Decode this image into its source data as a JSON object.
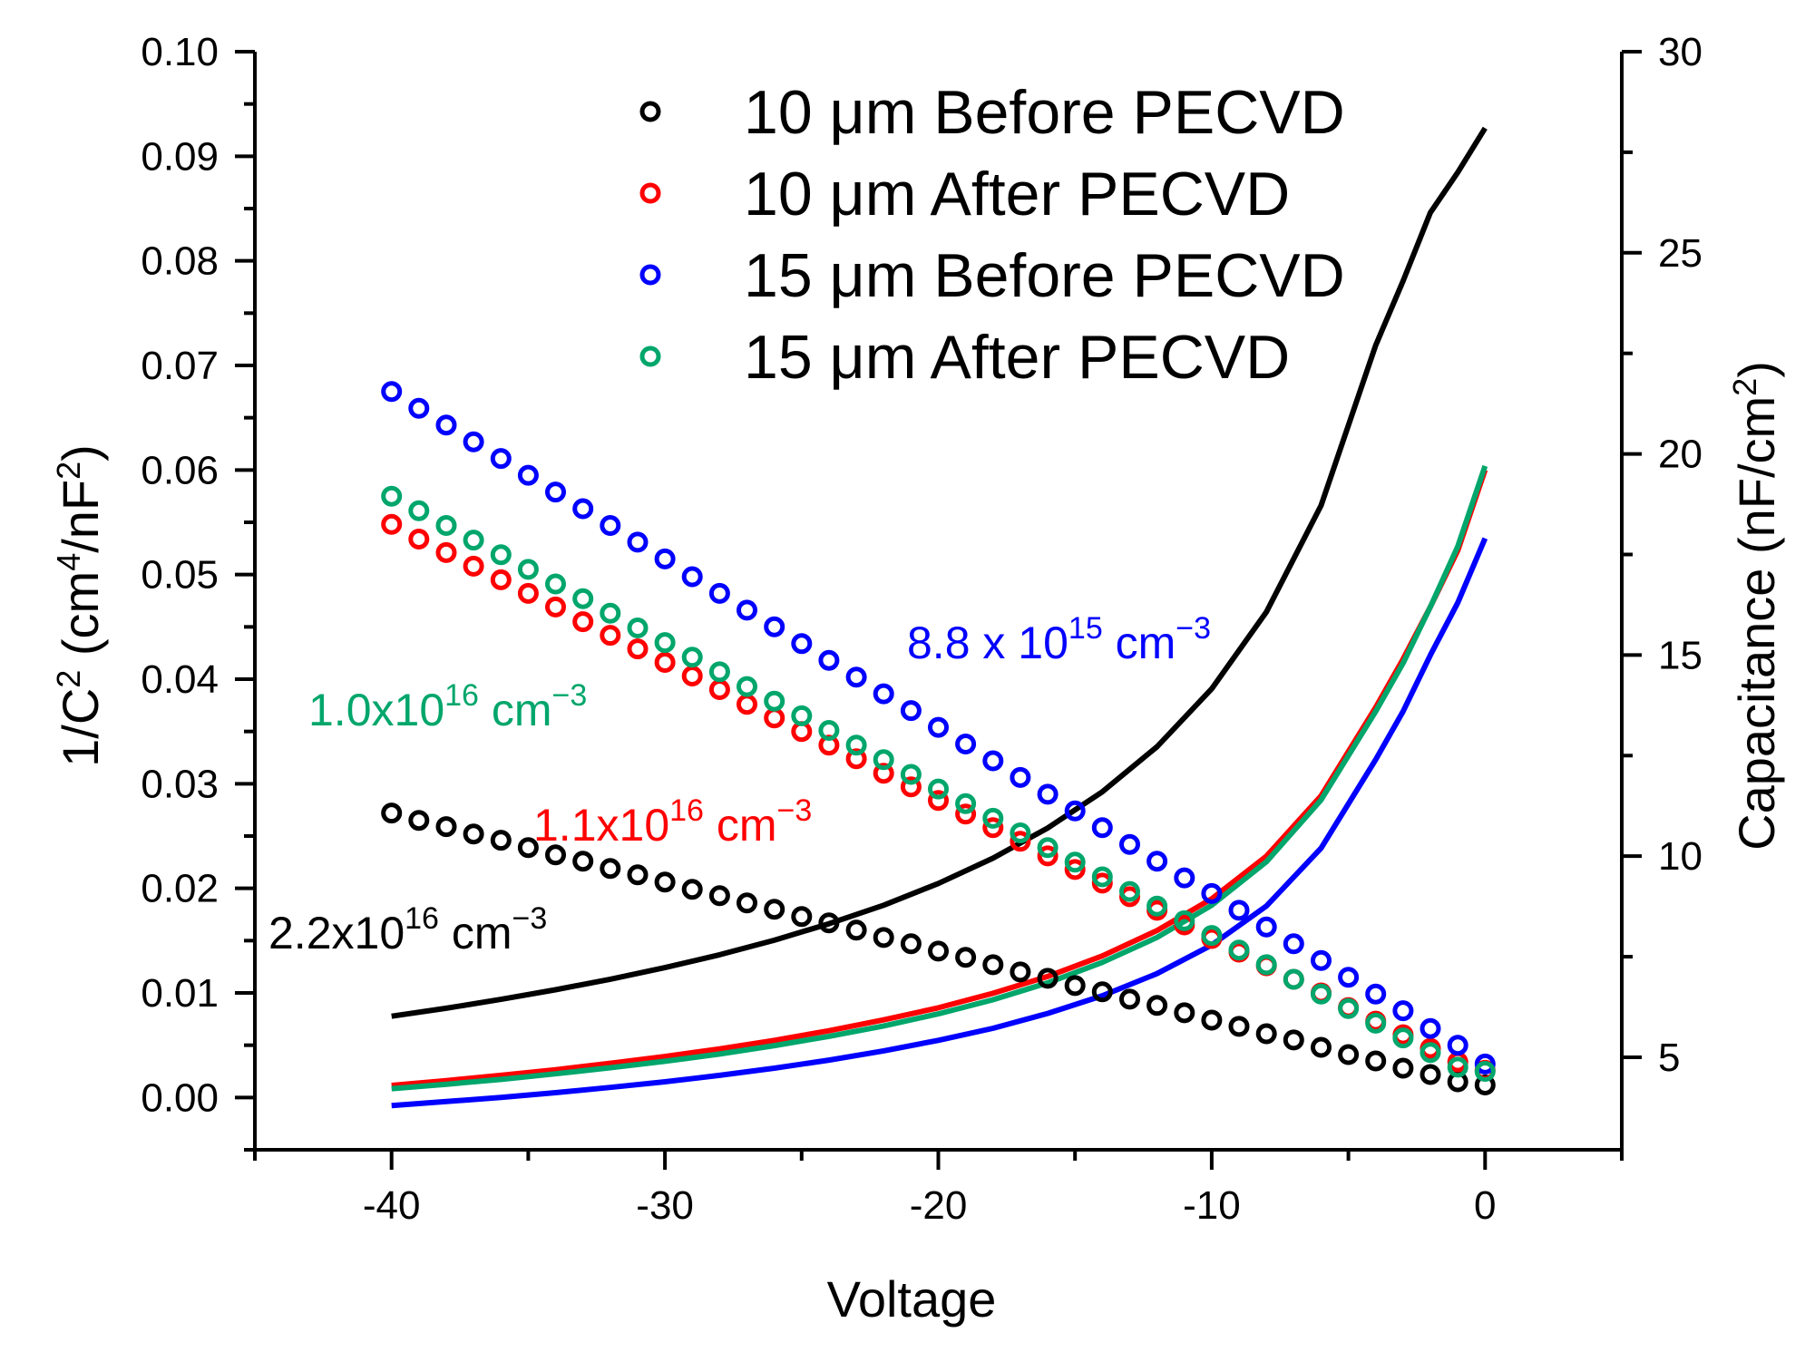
{
  "chart_data": {
    "type": "scatter",
    "x_axis": {
      "label": "Voltage",
      "range": [
        -45,
        5
      ],
      "ticks": [
        -40,
        -30,
        -20,
        -10,
        0
      ],
      "tick_labels": [
        "-40",
        "-30",
        "-20",
        "-10",
        "0"
      ]
    },
    "y_axis_left": {
      "label_main": "1/C",
      "label_sup1": "2",
      "label_mid": " (cm",
      "label_sup2": "4",
      "label_mid2": "/nF",
      "label_sup3": "2",
      "label_end": ")",
      "range": [
        -0.005,
        0.1
      ],
      "ticks": [
        0.0,
        0.01,
        0.02,
        0.03,
        0.04,
        0.05,
        0.06,
        0.07,
        0.08,
        0.09,
        0.1
      ],
      "tick_labels": [
        "0.00",
        "0.01",
        "0.02",
        "0.03",
        "0.04",
        "0.05",
        "0.06",
        "0.07",
        "0.08",
        "0.09",
        "0.10"
      ]
    },
    "y_axis_right": {
      "label_main": "Capacitance (nF/cm",
      "label_sup": "2",
      "label_end": ")",
      "range": [
        2.7,
        30
      ],
      "ticks": [
        5,
        10,
        15,
        20,
        25,
        30
      ],
      "tick_labels": [
        "5",
        "10",
        "15",
        "20",
        "25",
        "30"
      ]
    },
    "legend": {
      "placement": "top",
      "entries": [
        {
          "label": "10 μm Before PECVD",
          "color": "#000000"
        },
        {
          "label": "10 μm After PECVD",
          "color": "#ff0000"
        },
        {
          "label": "15 μm Before PECVD",
          "color": "#0000ff"
        },
        {
          "label": "15 μm After PECVD",
          "color": "#00a66b"
        }
      ]
    },
    "scatter_series": [
      {
        "name": "10 μm Before PECVD",
        "color": "#000000",
        "axis": "left",
        "x": [
          -40,
          -39,
          -38,
          -37,
          -36,
          -35,
          -34,
          -33,
          -32,
          -31,
          -30,
          -29,
          -28,
          -27,
          -26,
          -25,
          -24,
          -23,
          -22,
          -21,
          -20,
          -19,
          -18,
          -17,
          -16,
          -15,
          -14,
          -13,
          -12,
          -11,
          -10,
          -9,
          -8,
          -7,
          -6,
          -5,
          -4,
          -3,
          -2,
          -1,
          0
        ],
        "y": [
          0.0272,
          0.0265,
          0.0259,
          0.0252,
          0.0246,
          0.0239,
          0.0232,
          0.0226,
          0.0219,
          0.0213,
          0.0206,
          0.0199,
          0.0193,
          0.0186,
          0.018,
          0.0173,
          0.0167,
          0.016,
          0.0153,
          0.0147,
          0.014,
          0.0134,
          0.0127,
          0.012,
          0.0114,
          0.0107,
          0.0101,
          0.0094,
          0.0088,
          0.0081,
          0.0074,
          0.0068,
          0.0061,
          0.0055,
          0.0048,
          0.0041,
          0.0035,
          0.0028,
          0.0022,
          0.0015,
          0.0012
        ]
      },
      {
        "name": "10 μm After PECVD",
        "color": "#ff0000",
        "axis": "left",
        "x": [
          -40,
          -39,
          -38,
          -37,
          -36,
          -35,
          -34,
          -33,
          -32,
          -31,
          -30,
          -29,
          -28,
          -27,
          -26,
          -25,
          -24,
          -23,
          -22,
          -21,
          -20,
          -19,
          -18,
          -17,
          -16,
          -15,
          -14,
          -13,
          -12,
          -11,
          -10,
          -9,
          -8,
          -7,
          -6,
          -5,
          -4,
          -3,
          -2,
          -1,
          0
        ],
        "y": [
          0.0548,
          0.0534,
          0.0521,
          0.0508,
          0.0495,
          0.0482,
          0.0469,
          0.0455,
          0.0442,
          0.0429,
          0.0416,
          0.0403,
          0.039,
          0.0376,
          0.0363,
          0.035,
          0.0337,
          0.0324,
          0.031,
          0.0297,
          0.0284,
          0.0271,
          0.0258,
          0.0245,
          0.0231,
          0.0218,
          0.0205,
          0.0192,
          0.0179,
          0.0165,
          0.0152,
          0.0139,
          0.0126,
          0.0113,
          0.01,
          0.0086,
          0.0073,
          0.006,
          0.0047,
          0.0034,
          0.0026
        ]
      },
      {
        "name": "15 μm Before PECVD",
        "color": "#0000ff",
        "axis": "left",
        "x": [
          -40,
          -39,
          -38,
          -37,
          -36,
          -35,
          -34,
          -33,
          -32,
          -31,
          -30,
          -29,
          -28,
          -27,
          -26,
          -25,
          -24,
          -23,
          -22,
          -21,
          -20,
          -19,
          -18,
          -17,
          -16,
          -15,
          -14,
          -13,
          -12,
          -11,
          -10,
          -9,
          -8,
          -7,
          -6,
          -5,
          -4,
          -3,
          -2,
          -1,
          0
        ],
        "y": [
          0.0675,
          0.0659,
          0.0643,
          0.0627,
          0.0611,
          0.0595,
          0.0579,
          0.0563,
          0.0547,
          0.0531,
          0.0515,
          0.0498,
          0.0482,
          0.0466,
          0.045,
          0.0434,
          0.0418,
          0.0402,
          0.0386,
          0.037,
          0.0354,
          0.0338,
          0.0322,
          0.0306,
          0.029,
          0.0274,
          0.0258,
          0.0242,
          0.0226,
          0.021,
          0.0195,
          0.0179,
          0.0163,
          0.0147,
          0.0131,
          0.0115,
          0.0099,
          0.0083,
          0.0066,
          0.005,
          0.0032
        ]
      },
      {
        "name": "15 μm After PECVD",
        "color": "#00a66b",
        "axis": "left",
        "x": [
          -40,
          -39,
          -38,
          -37,
          -36,
          -35,
          -34,
          -33,
          -32,
          -31,
          -30,
          -29,
          -28,
          -27,
          -26,
          -25,
          -24,
          -23,
          -22,
          -21,
          -20,
          -19,
          -18,
          -17,
          -16,
          -15,
          -14,
          -13,
          -12,
          -11,
          -10,
          -9,
          -8,
          -7,
          -6,
          -5,
          -4,
          -3,
          -2,
          -1,
          0
        ],
        "y": [
          0.0575,
          0.0561,
          0.0547,
          0.0533,
          0.0519,
          0.0505,
          0.0491,
          0.0477,
          0.0463,
          0.0449,
          0.0435,
          0.0421,
          0.0407,
          0.0393,
          0.0379,
          0.0365,
          0.0351,
          0.0337,
          0.0323,
          0.0309,
          0.0295,
          0.0281,
          0.0267,
          0.0253,
          0.0239,
          0.0225,
          0.0211,
          0.0197,
          0.0183,
          0.0169,
          0.0155,
          0.0141,
          0.0127,
          0.0113,
          0.0099,
          0.0085,
          0.0071,
          0.0057,
          0.0043,
          0.0029,
          0.0025
        ]
      }
    ],
    "line_series": [
      {
        "name": "10 μm Before PECVD (C-V)",
        "color": "#000000",
        "axis": "right",
        "x": [
          -40,
          -38,
          -36,
          -34,
          -32,
          -30,
          -28,
          -26,
          -24,
          -22,
          -20,
          -18,
          -16,
          -14,
          -12,
          -10,
          -8,
          -6,
          -4,
          -3,
          -2,
          -1,
          0
        ],
        "y": [
          6.02,
          6.22,
          6.44,
          6.68,
          6.94,
          7.23,
          7.55,
          7.91,
          8.32,
          8.78,
          9.32,
          9.95,
          10.7,
          11.6,
          12.72,
          14.16,
          16.07,
          18.72,
          22.7,
          24.3,
          26.0,
          27.0,
          28.1
        ]
      },
      {
        "name": "10 μm After PECVD (C-V)",
        "color": "#ff0000",
        "axis": "right",
        "x": [
          -40,
          -38,
          -36,
          -34,
          -32,
          -30,
          -28,
          -26,
          -24,
          -22,
          -20,
          -18,
          -16,
          -14,
          -12,
          -10,
          -8,
          -6,
          -4,
          -3,
          -2,
          -1,
          0
        ],
        "y": [
          4.3,
          4.42,
          4.55,
          4.69,
          4.85,
          5.02,
          5.21,
          5.42,
          5.66,
          5.93,
          6.23,
          6.59,
          7.01,
          7.52,
          8.15,
          8.94,
          10.0,
          11.5,
          13.7,
          14.9,
          16.2,
          17.6,
          19.6
        ]
      },
      {
        "name": "15 μm Before PECVD (C-V)",
        "color": "#0000ff",
        "axis": "right",
        "x": [
          -40,
          -38,
          -36,
          -34,
          -32,
          -30,
          -28,
          -26,
          -24,
          -22,
          -20,
          -18,
          -16,
          -14,
          -12,
          -10,
          -8,
          -6,
          -4,
          -3,
          -2,
          -1,
          0
        ],
        "y": [
          3.8,
          3.9,
          4.0,
          4.12,
          4.25,
          4.39,
          4.55,
          4.73,
          4.93,
          5.16,
          5.42,
          5.72,
          6.09,
          6.53,
          7.08,
          7.79,
          8.76,
          10.2,
          12.4,
          13.6,
          15.0,
          16.3,
          17.9
        ]
      },
      {
        "name": "15 μm After PECVD (C-V)",
        "color": "#00a66b",
        "axis": "right",
        "x": [
          -40,
          -38,
          -36,
          -34,
          -32,
          -30,
          -28,
          -26,
          -24,
          -22,
          -20,
          -18,
          -16,
          -14,
          -12,
          -10,
          -8,
          -6,
          -4,
          -3,
          -2,
          -1,
          0
        ],
        "y": [
          4.22,
          4.33,
          4.45,
          4.59,
          4.74,
          4.9,
          5.08,
          5.29,
          5.52,
          5.78,
          6.08,
          6.43,
          6.85,
          7.36,
          7.98,
          8.78,
          9.86,
          11.4,
          13.6,
          14.8,
          16.2,
          17.7,
          19.7
        ]
      }
    ],
    "annotations": [
      {
        "base": "8.8 x 10",
        "exp": "15",
        "unit": " cm",
        "unit_exp": "−3",
        "color": "#0000ff"
      },
      {
        "base": "1.0x10",
        "exp": "16",
        "unit": " cm",
        "unit_exp": "−3",
        "color": "#00a66b"
      },
      {
        "base": "1.1x10",
        "exp": "16",
        "unit": " cm",
        "unit_exp": "−3",
        "color": "#ff0000"
      },
      {
        "base": "2.2x10",
        "exp": "16",
        "unit": " cm",
        "unit_exp": "−3",
        "color": "#000000"
      }
    ]
  }
}
